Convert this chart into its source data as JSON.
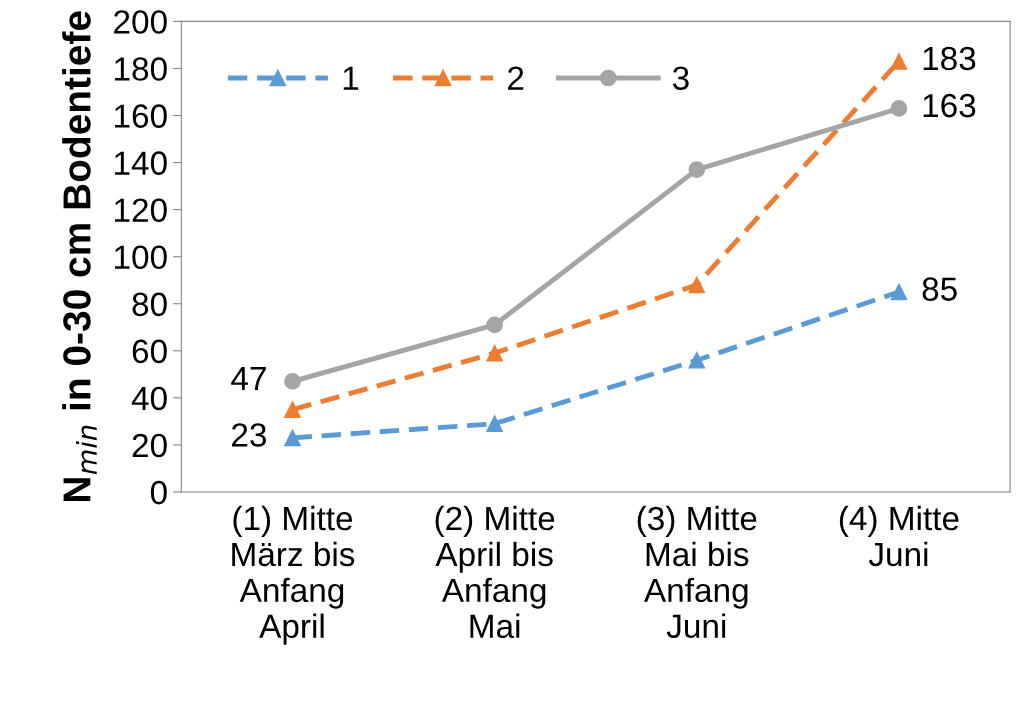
{
  "chart_data": {
    "type": "line",
    "ylabel": "N$_{min}$ in 0-30 cm Bodentiefe",
    "categories": [
      "(1) Mitte\nMärz bis\nAnfang\nApril",
      "(2) Mitte\nApril bis\nAnfang\nMai",
      "(3) Mitte\nMai bis\nAnfang\nJuni",
      "(4) Mitte\nJuni"
    ],
    "series": [
      {
        "name": "1",
        "color": "#5b9bd5",
        "values": [
          23,
          29,
          56,
          85
        ],
        "marker": "triangle",
        "line_style": "dashed",
        "value_labels": [
          "23",
          null,
          null,
          "85"
        ]
      },
      {
        "name": "2",
        "color": "#ed7d31",
        "values": [
          35,
          59,
          88,
          183
        ],
        "marker": "triangle",
        "line_style": "dashed",
        "value_labels": [
          null,
          null,
          null,
          "183"
        ]
      },
      {
        "name": "3",
        "color": "#a5a5a5",
        "values": [
          47,
          71,
          137,
          163
        ],
        "marker": "circle",
        "line_style": "solid",
        "value_labels": [
          "47",
          null,
          null,
          "163"
        ]
      }
    ],
    "ylim": [
      0,
      200
    ],
    "yticks": [
      0,
      20,
      40,
      60,
      80,
      100,
      120,
      140,
      160,
      180,
      200
    ],
    "grid": false,
    "legend": "top left"
  }
}
